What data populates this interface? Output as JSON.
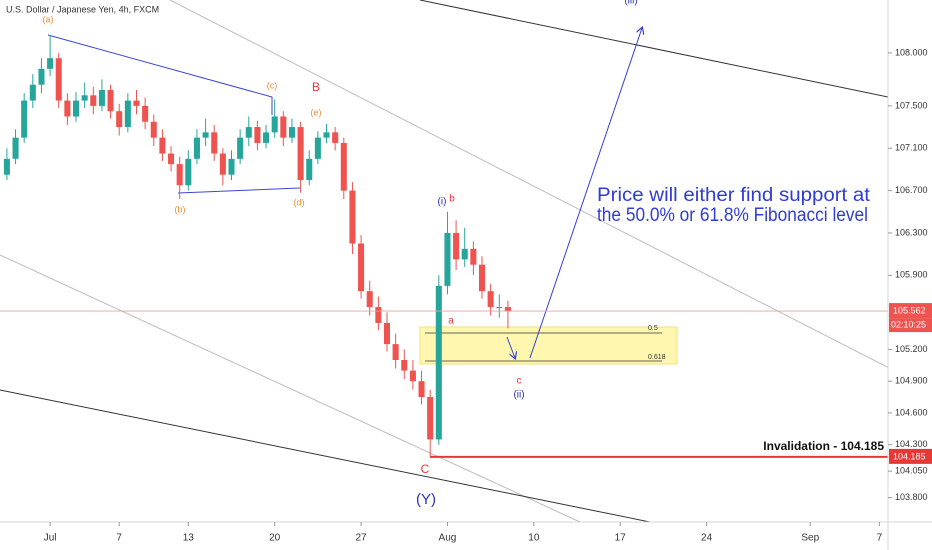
{
  "chart_data": {
    "type": "candlestick",
    "title": "U.S. Dollar / Japanese Yen, 4h, FXCM",
    "x": [
      -2.5,
      -2,
      -1.5,
      -1,
      -0.5,
      0,
      0.5,
      1,
      1.5,
      2,
      2.5,
      3,
      3.5,
      4,
      4.5,
      5,
      5.5,
      6,
      6.5,
      7,
      7.5,
      8,
      8.5,
      9,
      9.5,
      10,
      10.5,
      11,
      11.5,
      12,
      12.5,
      13,
      13.5,
      14,
      14.5,
      15,
      15.5,
      16,
      16.5,
      17,
      17.5,
      18,
      18.5,
      19,
      19.5,
      20,
      20.5,
      21,
      21.5,
      22,
      22.5,
      23,
      23.5,
      24,
      24.5,
      25,
      25.5,
      26,
      26.5
    ],
    "open": [
      106.85,
      107.0,
      107.2,
      107.55,
      107.7,
      107.85,
      107.95,
      107.55,
      107.4,
      107.55,
      107.6,
      107.5,
      107.65,
      107.45,
      107.3,
      107.55,
      107.5,
      107.35,
      107.2,
      107.05,
      106.95,
      106.75,
      107.0,
      107.2,
      107.25,
      107.05,
      106.85,
      107.0,
      107.2,
      107.3,
      107.15,
      107.25,
      107.4,
      107.2,
      107.3,
      106.8,
      107.0,
      107.2,
      107.25,
      107.15,
      106.7,
      106.2,
      105.75,
      105.6,
      105.45,
      105.25,
      105.1,
      105.0,
      104.9,
      104.75,
      104.35,
      105.8,
      106.3,
      106.05,
      106.15,
      106.0,
      105.75,
      105.6,
      105.6
    ],
    "high": [
      107.1,
      107.28,
      107.62,
      107.8,
      107.95,
      108.17,
      108.0,
      107.62,
      107.63,
      107.72,
      107.68,
      107.75,
      107.7,
      107.52,
      107.62,
      107.65,
      107.58,
      107.42,
      107.28,
      107.12,
      107.02,
      107.08,
      107.28,
      107.38,
      107.32,
      107.1,
      107.08,
      107.28,
      107.4,
      107.36,
      107.32,
      107.56,
      107.45,
      107.38,
      107.35,
      107.08,
      107.26,
      107.33,
      107.3,
      107.2,
      106.78,
      106.28,
      105.85,
      105.7,
      105.55,
      105.35,
      105.2,
      105.1,
      105.0,
      104.82,
      105.9,
      106.5,
      106.42,
      106.35,
      106.22,
      106.08,
      105.82,
      105.72,
      105.66
    ],
    "low": [
      106.8,
      106.95,
      107.15,
      107.48,
      107.62,
      107.78,
      107.48,
      107.32,
      107.35,
      107.48,
      107.42,
      107.45,
      107.38,
      107.22,
      107.25,
      107.42,
      107.28,
      107.12,
      106.98,
      106.88,
      106.62,
      106.7,
      106.95,
      107.12,
      106.98,
      106.75,
      106.8,
      106.95,
      107.12,
      107.08,
      107.1,
      107.2,
      107.12,
      107.15,
      106.68,
      106.75,
      106.95,
      107.15,
      107.08,
      106.62,
      106.1,
      105.68,
      105.52,
      105.38,
      105.18,
      105.02,
      104.92,
      104.82,
      104.68,
      104.185,
      104.3,
      105.72,
      105.95,
      105.98,
      105.9,
      105.68,
      105.52,
      105.5,
      105.4
    ],
    "close": [
      107.0,
      107.2,
      107.55,
      107.7,
      107.85,
      107.95,
      107.55,
      107.4,
      107.55,
      107.6,
      107.5,
      107.65,
      107.45,
      107.3,
      107.55,
      107.5,
      107.35,
      107.2,
      107.05,
      106.95,
      106.75,
      107.0,
      107.2,
      107.25,
      107.05,
      106.85,
      107.0,
      107.2,
      107.3,
      107.15,
      107.25,
      107.4,
      107.2,
      107.3,
      106.8,
      107.0,
      107.2,
      107.25,
      107.15,
      106.7,
      106.2,
      105.75,
      105.6,
      105.45,
      105.25,
      105.1,
      105.0,
      104.9,
      104.75,
      104.35,
      105.8,
      106.3,
      106.05,
      106.15,
      106.0,
      105.75,
      105.6,
      105.6,
      105.562
    ],
    "up_color": "#26a69a",
    "down_color": "#ef5350",
    "xlim": [
      -2.9,
      48.5
    ],
    "xticks": [
      {
        "value": 0,
        "label": "Jul"
      },
      {
        "value": 4,
        "label": "7"
      },
      {
        "value": 8,
        "label": "13"
      },
      {
        "value": 13,
        "label": "20"
      },
      {
        "value": 18,
        "label": "27"
      },
      {
        "value": 23,
        "label": "Aug"
      },
      {
        "value": 28,
        "label": "10"
      },
      {
        "value": 33,
        "label": "17"
      },
      {
        "value": 38,
        "label": "24"
      },
      {
        "value": 44,
        "label": "Sep"
      },
      {
        "value": 48,
        "label": "7"
      }
    ],
    "ylim": [
      103.57,
      108.5
    ],
    "yticks": [
      {
        "value": 108,
        "label": "108.000"
      },
      {
        "value": 107.5,
        "label": "107.500"
      },
      {
        "value": 107.1,
        "label": "107.100"
      },
      {
        "value": 106.7,
        "label": "106.700"
      },
      {
        "value": 106.3,
        "label": "106.300"
      },
      {
        "value": 105.9,
        "label": "105.900"
      },
      {
        "value": 105.2,
        "label": "105.200"
      },
      {
        "value": 104.9,
        "label": "104.900"
      },
      {
        "value": 104.6,
        "label": "104.600"
      },
      {
        "value": 104.3,
        "label": "104.300"
      },
      {
        "value": 104.05,
        "label": "104.050"
      },
      {
        "value": 103.8,
        "label": "103.800"
      }
    ],
    "last_price": 105.562,
    "countdown": "02:10:25",
    "invalidation_price": 104.185,
    "invalidation_text": "Invalidation - 104.185",
    "fib_labels": [
      "0.5",
      "0.618"
    ],
    "note_lines": [
      "Price will either find support at",
      "the 50.0% or 61.8% Fibonacci level"
    ],
    "annotations": [
      "(a)",
      "(b)",
      "(c)",
      "(d)",
      "(e)",
      "B",
      "(i)",
      "b",
      "a",
      "c",
      "(ii)",
      "(iii)",
      "C",
      "(Y)"
    ]
  }
}
